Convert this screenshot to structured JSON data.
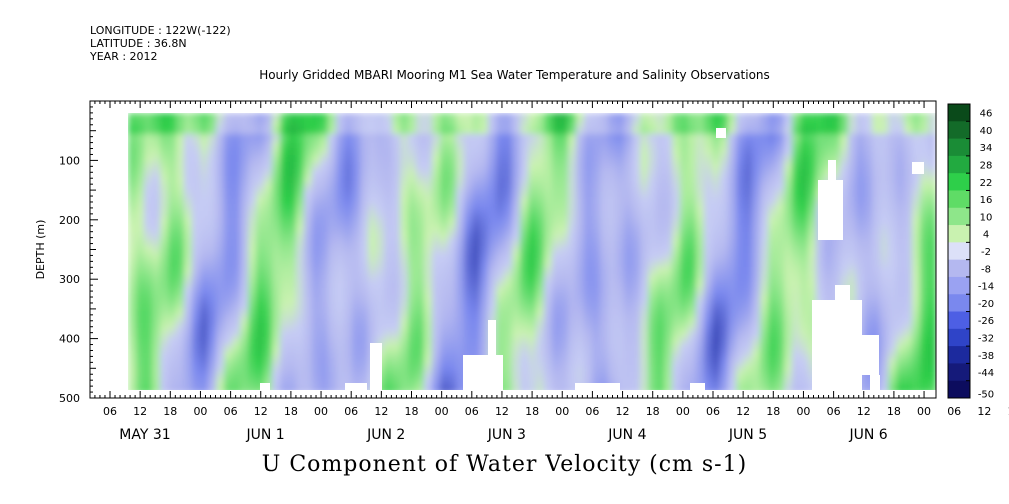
{
  "header": {
    "longitude": "LONGITUDE : 122W(-122)",
    "latitude": "LATITUDE : 36.8N",
    "year": "YEAR : 2012"
  },
  "title": "Hourly Gridded MBARI Mooring M1 Sea Water Temperature and Salinity Observations",
  "caption": "U Component of Water Velocity (cm s-1)",
  "chart_data": {
    "type": "heatmap",
    "ylabel": "DEPTH (m)",
    "ylim": [
      500,
      0
    ],
    "y_ticks": [
      100,
      200,
      300,
      400,
      500
    ],
    "x_hour_labels": [
      "06",
      "12",
      "18",
      "00",
      "06",
      "12",
      "18",
      "00",
      "06",
      "12",
      "18",
      "00",
      "06",
      "12",
      "18",
      "00",
      "06",
      "12",
      "18",
      "00",
      "06",
      "12",
      "18",
      "00",
      "06",
      "12",
      "18",
      "00",
      "06",
      "12",
      "18",
      "00"
    ],
    "x_day_labels": [
      "MAY 31",
      "JUN  1",
      "JUN  2",
      "JUN  3",
      "JUN  4",
      "JUN  5",
      "JUN  6"
    ],
    "colorbar": {
      "labels": [
        "46",
        "40",
        "34",
        "28",
        "22",
        "16",
        "10",
        "4",
        "-2",
        "-8",
        "-14",
        "-20",
        "-26",
        "-32",
        "-38",
        "-44",
        "-50"
      ],
      "range": [
        -50,
        46
      ]
    },
    "colors": {
      "dark_green": "#0a4a1a",
      "green": "#2ecf4a",
      "light_green": "#8ee68a",
      "pale_green": "#c9f2b0",
      "light_blue": "#b4b8f0",
      "blue": "#7a88ee",
      "dark_blue": "#1c2a9e",
      "navy": "#0c0c5e"
    }
  }
}
